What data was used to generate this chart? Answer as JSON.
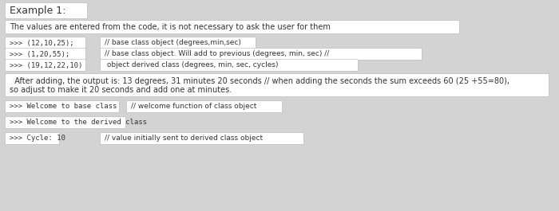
{
  "background_color": "#d3d3d3",
  "title": "Example 1:",
  "subtitle": "The values are entered from the code, it is not necessary to ask the user for them",
  "code_line1_code": ">>> (12,10,25);",
  "code_line1_comment": "// base class object (degrees,min,sec)",
  "code_line2_code": ">>> (1,20,55);",
  "code_line2_comment": "// base class object. Will add to previous (degrees, min, sec) //",
  "code_line3_code": ">>> (19,12,22,10)",
  "code_line3_comment": " object derived class (degrees, min, sec, cycles)",
  "output_line1": "  After adding, the output is: 13 degrees, 31 minutes 20 seconds // when adding the seconds the sum exceeds 60 (25 +55=80),",
  "output_line2": "so adjust to make it 20 seconds and add one at minutes.",
  "bottom1_code": ">>> Welcome to base class",
  "bottom1_comment": "// welcome function of class object",
  "bottom2_code": ">>> Welcome to the derived class",
  "bottom3_code": ">>> Cycle: 10",
  "bottom3_comment": "// value initially sent to derived class object",
  "fs_title": 9.0,
  "fs_text": 7.0,
  "fs_code": 6.5,
  "box_color": "#ffffff",
  "box_edge": "#b0b0b0",
  "text_color": "#333333"
}
